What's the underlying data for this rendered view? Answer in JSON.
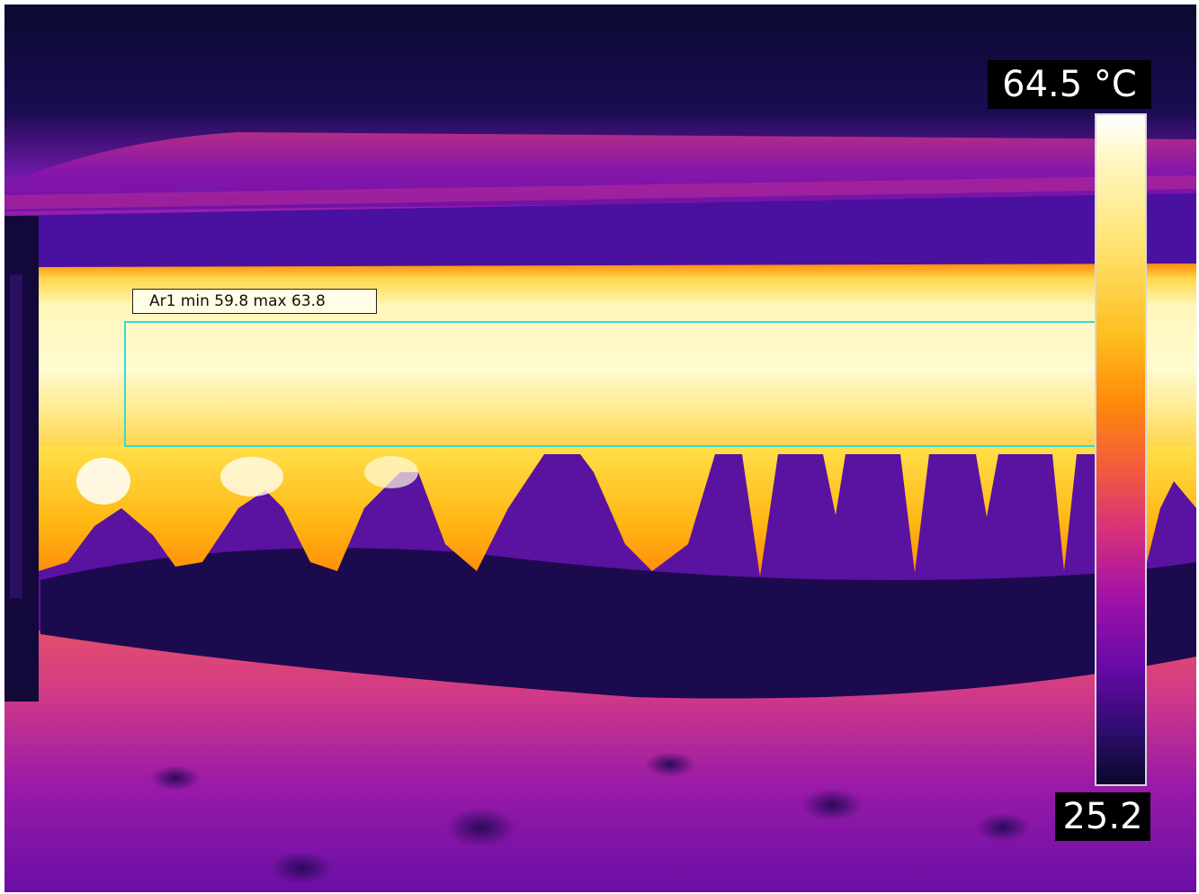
{
  "measurement": {
    "area_label": "Ar1 min 59.8 max 63.8"
  },
  "scale": {
    "max_label": "64.5 °C",
    "min_label": "25.2",
    "max_celsius": 64.5,
    "min_celsius": 25.2
  },
  "colors": {
    "area_box": "#34d9d6",
    "palette": "iron"
  }
}
